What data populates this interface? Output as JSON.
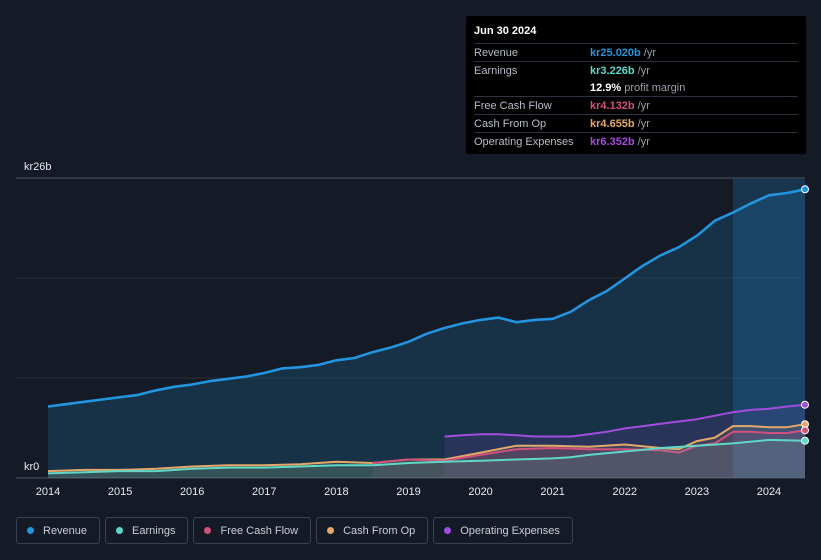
{
  "colors": {
    "revenue": "#2394df",
    "earnings": "#5fd8c8",
    "fcf": "#d0517d",
    "cfo": "#e4a96a",
    "opex": "#a24dde",
    "background": "#151b26"
  },
  "tooltip": {
    "date": "Jun 30 2024",
    "rows": [
      {
        "label": "Revenue",
        "value": "kr25.020b",
        "unit": "/yr",
        "color": "#2394df"
      },
      {
        "label": "Earnings",
        "value": "kr3.226b",
        "unit": "/yr",
        "color": "#5fd8c8"
      },
      {
        "label": "",
        "value": "12.9%",
        "unit": "profit margin",
        "color": "#ffffff"
      },
      {
        "label": "Free Cash Flow",
        "value": "kr4.132b",
        "unit": "/yr",
        "color": "#d0517d"
      },
      {
        "label": "Cash From Op",
        "value": "kr4.655b",
        "unit": "/yr",
        "color": "#e4a96a"
      },
      {
        "label": "Operating Expenses",
        "value": "kr6.352b",
        "unit": "/yr",
        "color": "#a24dde"
      }
    ]
  },
  "legend": [
    {
      "label": "Revenue",
      "color": "#2394df"
    },
    {
      "label": "Earnings",
      "color": "#5fd8c8"
    },
    {
      "label": "Free Cash Flow",
      "color": "#d0517d"
    },
    {
      "label": "Cash From Op",
      "color": "#e4a96a"
    },
    {
      "label": "Operating Expenses",
      "color": "#a24dde"
    }
  ],
  "chart_data": {
    "type": "area",
    "title": "",
    "ylabel_top": "kr26b",
    "ylabel_bottom": "kr0",
    "ylim": [
      0,
      26
    ],
    "xlim": [
      2014,
      2024.5
    ],
    "x_ticks": [
      "2014",
      "2015",
      "2016",
      "2017",
      "2018",
      "2019",
      "2020",
      "2021",
      "2022",
      "2023",
      "2024"
    ],
    "highlight_from": 2023.5,
    "series": [
      {
        "name": "Revenue",
        "key": "revenue",
        "x": [
          2014,
          2014.25,
          2014.5,
          2014.75,
          2015,
          2015.25,
          2015.5,
          2015.75,
          2016,
          2016.25,
          2016.5,
          2016.75,
          2017,
          2017.25,
          2017.5,
          2017.75,
          2018,
          2018.25,
          2018.5,
          2018.75,
          2019,
          2019.25,
          2019.5,
          2019.75,
          2020,
          2020.25,
          2020.5,
          2020.75,
          2021,
          2021.25,
          2021.5,
          2021.75,
          2022,
          2022.25,
          2022.5,
          2022.75,
          2023,
          2023.25,
          2023.5,
          2023.75,
          2024,
          2024.25,
          2024.5
        ],
        "values": [
          6.2,
          6.4,
          6.6,
          6.8,
          7.0,
          7.2,
          7.6,
          7.9,
          8.1,
          8.4,
          8.6,
          8.8,
          9.1,
          9.5,
          9.6,
          9.8,
          10.2,
          10.4,
          10.9,
          11.3,
          11.8,
          12.5,
          13.0,
          13.4,
          13.7,
          13.9,
          13.5,
          13.7,
          13.8,
          14.4,
          15.4,
          16.2,
          17.3,
          18.4,
          19.3,
          20.0,
          21.0,
          22.3,
          23.0,
          23.8,
          24.5,
          24.7,
          25.02
        ]
      },
      {
        "name": "Earnings",
        "key": "earnings",
        "x": [
          2014,
          2014.5,
          2015,
          2015.5,
          2016,
          2016.5,
          2017,
          2017.5,
          2018,
          2018.5,
          2019,
          2019.5,
          2020,
          2020.5,
          2021,
          2021.25,
          2021.5,
          2022,
          2022.5,
          2023,
          2023.5,
          2024,
          2024.5
        ],
        "values": [
          0.4,
          0.5,
          0.6,
          0.6,
          0.8,
          0.9,
          0.9,
          1.0,
          1.1,
          1.1,
          1.3,
          1.4,
          1.5,
          1.6,
          1.7,
          1.8,
          2.0,
          2.3,
          2.6,
          2.8,
          3.0,
          3.3,
          3.23
        ]
      },
      {
        "name": "Free Cash Flow",
        "key": "fcf",
        "x": [
          2018.5,
          2019,
          2019.5,
          2020,
          2020.5,
          2021,
          2021.5,
          2022,
          2022.5,
          2022.75,
          2023,
          2023.25,
          2023.5,
          2023.75,
          2024,
          2024.25,
          2024.5
        ],
        "values": [
          1.3,
          1.6,
          1.5,
          2.0,
          2.5,
          2.6,
          2.5,
          2.5,
          2.4,
          2.2,
          2.8,
          3.0,
          4.0,
          4.0,
          3.9,
          3.9,
          4.13
        ]
      },
      {
        "name": "Cash From Op",
        "key": "cfo",
        "x": [
          2014,
          2014.5,
          2015,
          2015.5,
          2016,
          2016.5,
          2017,
          2017.5,
          2018,
          2018.5,
          2019,
          2019.5,
          2020,
          2020.5,
          2021,
          2021.5,
          2022,
          2022.5,
          2022.75,
          2023,
          2023.25,
          2023.5,
          2023.75,
          2024,
          2024.25,
          2024.5
        ],
        "values": [
          0.6,
          0.7,
          0.7,
          0.8,
          1.0,
          1.1,
          1.1,
          1.2,
          1.4,
          1.3,
          1.6,
          1.6,
          2.2,
          2.8,
          2.8,
          2.7,
          2.9,
          2.6,
          2.5,
          3.2,
          3.5,
          4.5,
          4.5,
          4.4,
          4.4,
          4.66
        ]
      },
      {
        "name": "Operating Expenses",
        "key": "opex",
        "x": [
          2019.5,
          2019.75,
          2020,
          2020.25,
          2020.5,
          2020.75,
          2021,
          2021.25,
          2021.5,
          2021.75,
          2022,
          2022.25,
          2022.5,
          2022.75,
          2023,
          2023.25,
          2023.5,
          2023.75,
          2024,
          2024.25,
          2024.5
        ],
        "values": [
          3.6,
          3.7,
          3.8,
          3.8,
          3.7,
          3.6,
          3.6,
          3.6,
          3.8,
          4.0,
          4.3,
          4.5,
          4.7,
          4.9,
          5.1,
          5.4,
          5.7,
          5.9,
          6.0,
          6.2,
          6.35
        ]
      }
    ]
  }
}
